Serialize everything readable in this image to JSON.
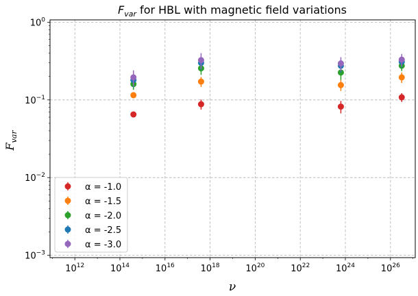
{
  "chart_data": {
    "type": "scatter",
    "title_prefix": "F",
    "title_sub": "var",
    "title_rest": " for HBL with magnetic field variations",
    "xlabel": "ν",
    "ylabel_main": "F",
    "ylabel_sub": "var",
    "x_log10_range": [
      10.9,
      27.1
    ],
    "y_log10_range": [
      -3.03,
      0.03
    ],
    "x_ticks": [
      {
        "base": "10",
        "exp": "12",
        "log": 12
      },
      {
        "base": "10",
        "exp": "14",
        "log": 14
      },
      {
        "base": "10",
        "exp": "16",
        "log": 16
      },
      {
        "base": "10",
        "exp": "18",
        "log": 18
      },
      {
        "base": "10",
        "exp": "20",
        "log": 20
      },
      {
        "base": "10",
        "exp": "22",
        "log": 22
      },
      {
        "base": "10",
        "exp": "24",
        "log": 24
      },
      {
        "base": "10",
        "exp": "26",
        "log": 26
      }
    ],
    "y_ticks": [
      {
        "base": "10",
        "exp": "0",
        "log": 0
      },
      {
        "base": "10",
        "exp": "−1",
        "log": -1
      },
      {
        "base": "10",
        "exp": "−2",
        "log": -2
      },
      {
        "base": "10",
        "exp": "−3",
        "log": -3
      }
    ],
    "grid": true,
    "legend_position": "lower-left",
    "x_log_values": [
      14.6,
      17.6,
      23.8,
      26.5
    ],
    "series": [
      {
        "name": "α = -1.0",
        "color": "#d62728",
        "values": [
          0.065,
          0.088,
          0.082,
          0.108
        ],
        "err": [
          0.004,
          0.013,
          0.015,
          0.014
        ]
      },
      {
        "name": "α = -1.5",
        "color": "#ff7f0e",
        "values": [
          0.115,
          0.172,
          0.155,
          0.195
        ],
        "err": [
          0.01,
          0.025,
          0.025,
          0.03
        ]
      },
      {
        "name": "α = -2.0",
        "color": "#2ca02c",
        "values": [
          0.16,
          0.255,
          0.225,
          0.275
        ],
        "err": [
          0.025,
          0.045,
          0.045,
          0.04
        ]
      },
      {
        "name": "α = -2.5",
        "color": "#1f77b4",
        "values": [
          0.18,
          0.3,
          0.275,
          0.31
        ],
        "err": [
          0.035,
          0.055,
          0.05,
          0.05
        ]
      },
      {
        "name": "α = -3.0",
        "color": "#9467bd",
        "values": [
          0.195,
          0.325,
          0.295,
          0.33
        ],
        "err": [
          0.045,
          0.075,
          0.06,
          0.06
        ]
      }
    ]
  }
}
